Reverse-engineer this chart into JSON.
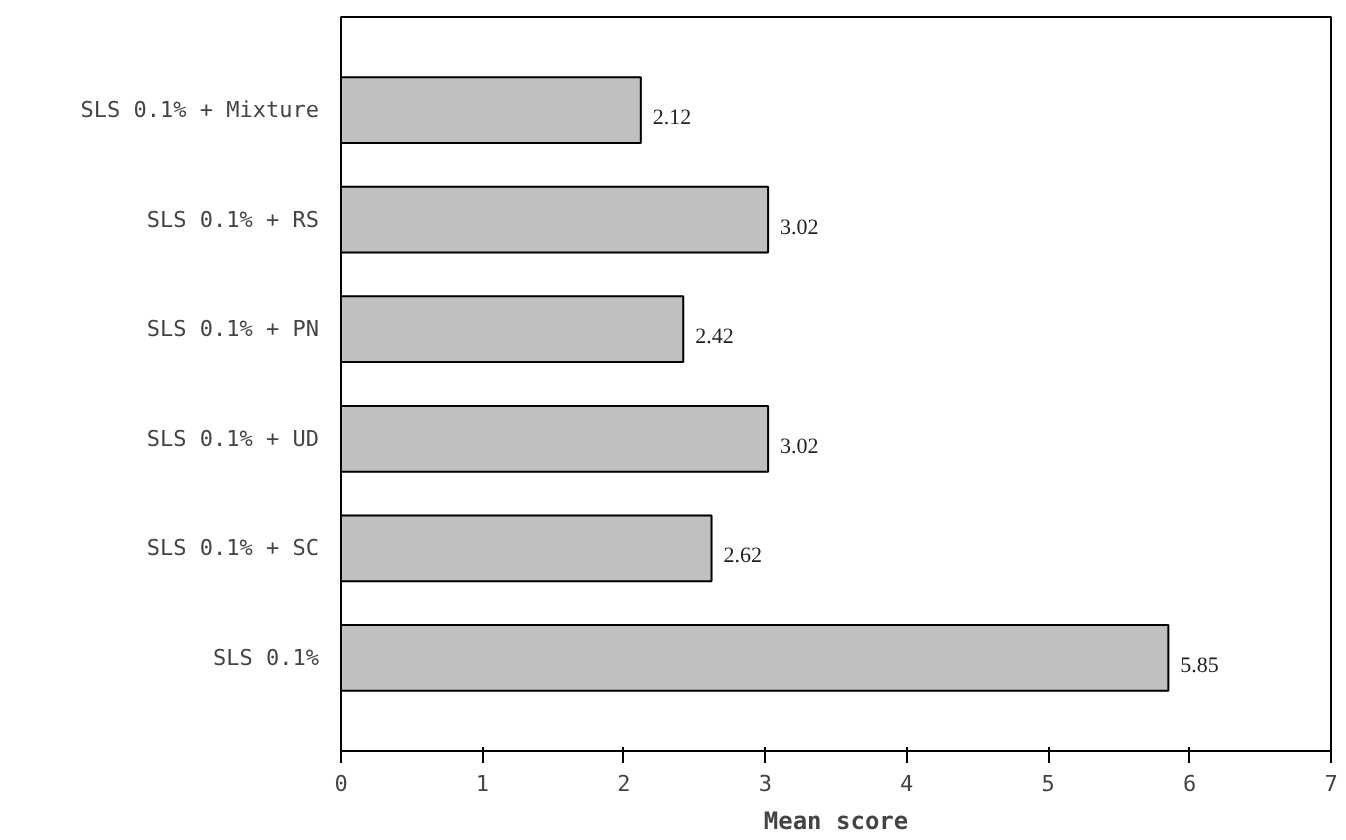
{
  "chart_data": {
    "type": "bar",
    "orientation": "horizontal",
    "xlabel": "Mean score",
    "categories": [
      "SLS 0.1% + Mixture",
      "SLS 0.1% + RS",
      "SLS 0.1% + PN",
      "SLS 0.1% + UD",
      "SLS 0.1% + SC",
      "SLS 0.1%"
    ],
    "values": [
      2.12,
      3.02,
      2.42,
      3.02,
      2.62,
      5.85
    ],
    "color": "#c0c0c0",
    "xlim": [
      0,
      7
    ],
    "xticks": [
      0,
      1,
      2,
      3,
      4,
      5,
      6,
      7
    ],
    "grid": false,
    "data_labels": true
  }
}
